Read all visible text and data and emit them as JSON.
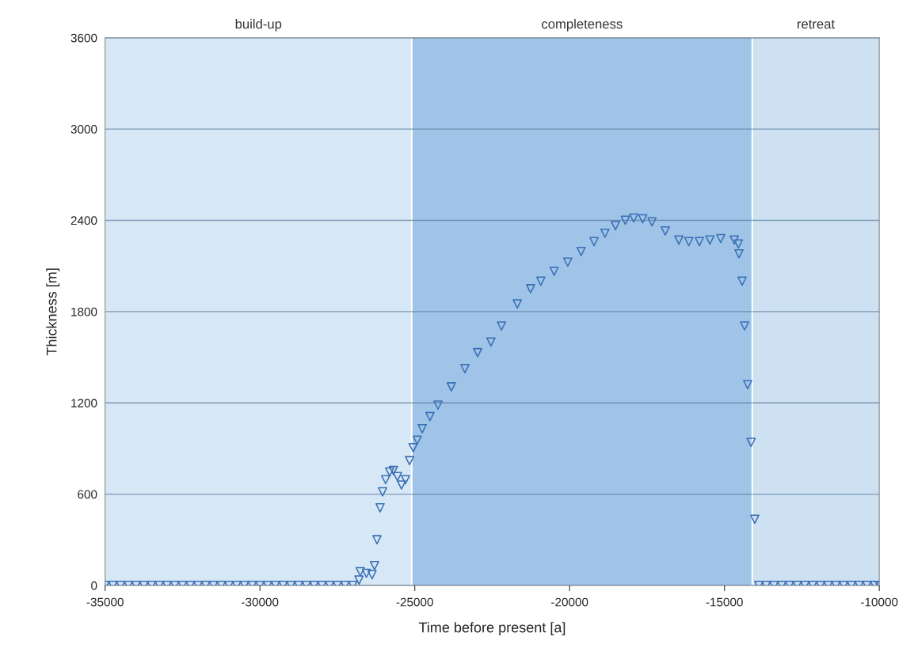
{
  "chart_data": {
    "type": "scatter",
    "xlabel": "Time before present [a]",
    "ylabel": "Thickness [m]",
    "xlim": [
      -35000,
      -10000
    ],
    "xticks": [
      -35000,
      -30000,
      -25000,
      -20000,
      -15000,
      -10000
    ],
    "ylim": [
      0,
      3600
    ],
    "yticks": [
      0,
      600,
      1200,
      1800,
      2400,
      3000,
      3600
    ],
    "grid": "y",
    "marker": "triangle",
    "bands": [
      {
        "axis": "x",
        "from": -35000,
        "to": -25100,
        "label": "build-up",
        "color": "#d6e7f6"
      },
      {
        "axis": "x",
        "from": -25100,
        "to": -14100,
        "label": "completeness",
        "color": "#9fc4e7"
      },
      {
        "axis": "x",
        "from": -14100,
        "to": -10000,
        "label": "retreat",
        "color": "#cde1f3"
      }
    ],
    "ref_lines": [
      {
        "axis": "x",
        "value": -25100,
        "color": "#ffffff"
      },
      {
        "axis": "x",
        "value": -14100,
        "color": "#ffffff"
      }
    ],
    "series": [
      {
        "color": "#3a6fb5",
        "x": [
          -35000,
          -34750,
          -34500,
          -34250,
          -34000,
          -33750,
          -33500,
          -33250,
          -33000,
          -32750,
          -32500,
          -32250,
          -32000,
          -31750,
          -31500,
          -31250,
          -31000,
          -30750,
          -30500,
          -30250,
          -30000,
          -29750,
          -29500,
          -29250,
          -29000,
          -28750,
          -28500,
          -28250,
          -28000,
          -27750,
          -27500,
          -27250,
          -27000,
          -26800,
          -26760,
          -26560,
          -26380,
          -26300,
          -26220,
          -26120,
          -26040,
          -25940,
          -25810,
          -25690,
          -25560,
          -25430,
          -25300,
          -25170,
          -25050,
          -24920,
          -24760,
          -24510,
          -24250,
          -23820,
          -23380,
          -22970,
          -22540,
          -22200,
          -21690,
          -21260,
          -20930,
          -20500,
          -20060,
          -19630,
          -19210,
          -18860,
          -18520,
          -18200,
          -17930,
          -17640,
          -17340,
          -16910,
          -16470,
          -16150,
          -15810,
          -15470,
          -15120,
          -14680,
          -14550,
          -14530,
          -14430,
          -14350,
          -14250,
          -14140,
          -14020,
          -13890,
          -13650,
          -13400,
          -13150,
          -12900,
          -12650,
          -12400,
          -12150,
          -11900,
          -11650,
          -11400,
          -11150,
          -10900,
          -10650,
          -10400,
          -10150,
          -10000
        ],
        "values": [
          0,
          0,
          0,
          0,
          0,
          0,
          0,
          0,
          0,
          0,
          0,
          0,
          0,
          0,
          0,
          0,
          0,
          0,
          0,
          0,
          0,
          0,
          0,
          0,
          0,
          0,
          0,
          0,
          0,
          0,
          0,
          0,
          0,
          35,
          90,
          80,
          70,
          130,
          300,
          510,
          615,
          695,
          745,
          755,
          715,
          660,
          695,
          820,
          905,
          955,
          1030,
          1110,
          1185,
          1305,
          1425,
          1530,
          1600,
          1705,
          1850,
          1950,
          2000,
          2065,
          2125,
          2195,
          2260,
          2315,
          2365,
          2400,
          2415,
          2410,
          2390,
          2330,
          2270,
          2260,
          2260,
          2270,
          2280,
          2270,
          2245,
          2180,
          2000,
          1705,
          1320,
          940,
          435,
          0,
          0,
          0,
          0,
          0,
          0,
          0,
          0,
          0,
          0,
          0,
          0,
          0,
          0,
          0,
          0,
          0
        ]
      }
    ]
  }
}
